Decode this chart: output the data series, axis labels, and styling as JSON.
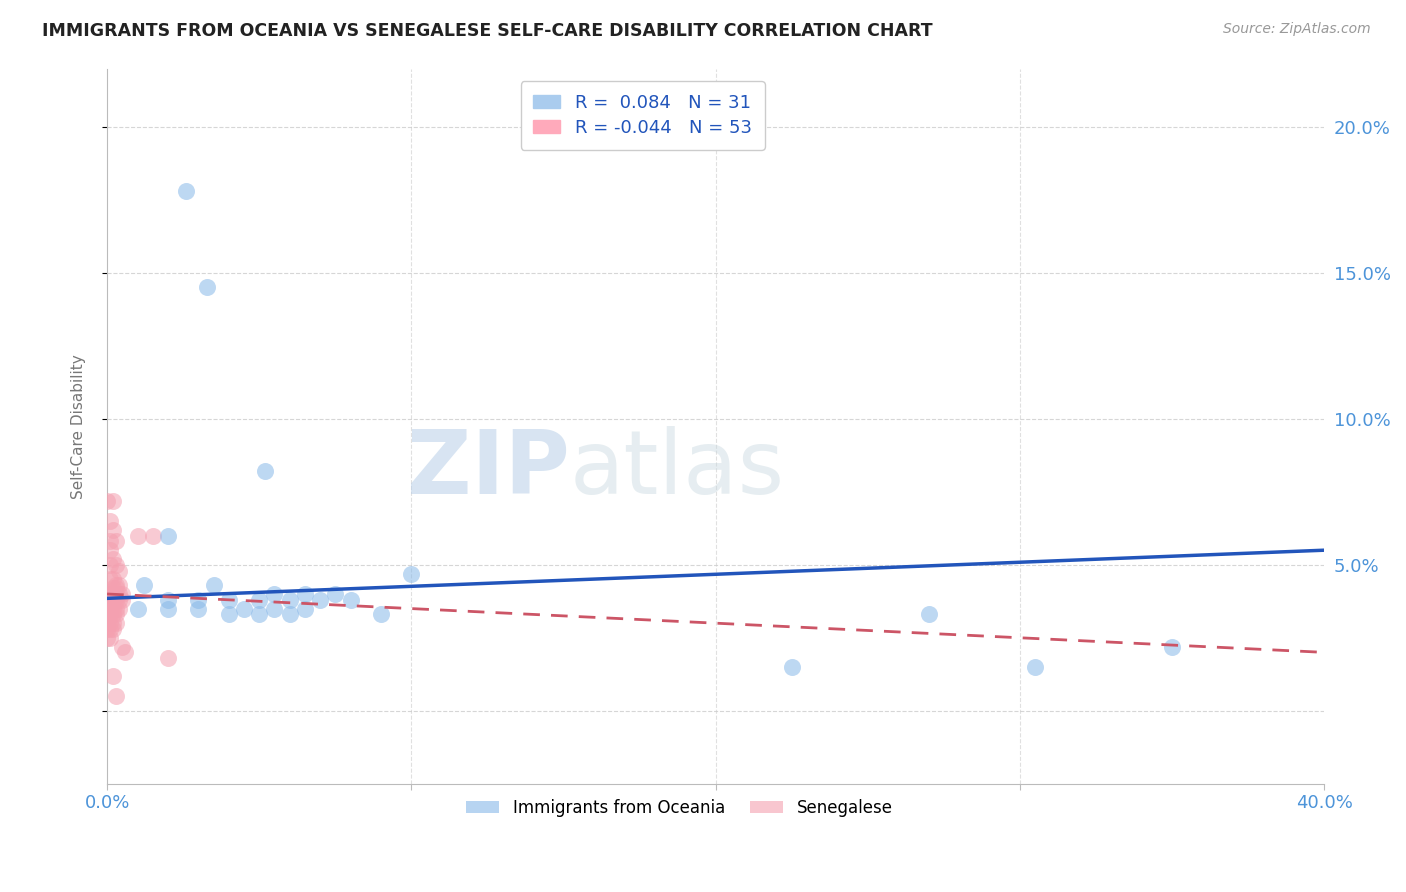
{
  "title": "IMMIGRANTS FROM OCEANIA VS SENEGALESE SELF-CARE DISABILITY CORRELATION CHART",
  "source": "Source: ZipAtlas.com",
  "xlabel_color": "#4d94d9",
  "ylabel": "Self-Care Disability",
  "xlim": [
    0.0,
    0.4
  ],
  "ylim": [
    -0.025,
    0.22
  ],
  "ytick_positions": [
    0.0,
    0.05,
    0.1,
    0.15,
    0.2
  ],
  "ytick_labels": [
    "",
    "5.0%",
    "10.0%",
    "15.0%",
    "20.0%"
  ],
  "xtick_positions": [
    0.0,
    0.1,
    0.2,
    0.3,
    0.4
  ],
  "xtick_labels": [
    "0.0%",
    "",
    "",
    "",
    "40.0%"
  ],
  "blue_color": "#88b8e8",
  "pink_color": "#f4a0b0",
  "trend_blue_color": "#2255bb",
  "trend_pink_color": "#cc5566",
  "watermark_zip": "ZIP",
  "watermark_atlas": "atlas",
  "blue_scatter": [
    [
      0.026,
      0.178
    ],
    [
      0.033,
      0.145
    ],
    [
      0.052,
      0.082
    ],
    [
      0.02,
      0.06
    ],
    [
      0.012,
      0.043
    ],
    [
      0.035,
      0.043
    ],
    [
      0.055,
      0.04
    ],
    [
      0.065,
      0.04
    ],
    [
      0.075,
      0.04
    ],
    [
      0.02,
      0.038
    ],
    [
      0.03,
      0.038
    ],
    [
      0.04,
      0.038
    ],
    [
      0.05,
      0.038
    ],
    [
      0.06,
      0.038
    ],
    [
      0.07,
      0.038
    ],
    [
      0.08,
      0.038
    ],
    [
      0.045,
      0.035
    ],
    [
      0.055,
      0.035
    ],
    [
      0.065,
      0.035
    ],
    [
      0.01,
      0.035
    ],
    [
      0.02,
      0.035
    ],
    [
      0.03,
      0.035
    ],
    [
      0.04,
      0.033
    ],
    [
      0.05,
      0.033
    ],
    [
      0.06,
      0.033
    ],
    [
      0.09,
      0.033
    ],
    [
      0.1,
      0.047
    ],
    [
      0.27,
      0.033
    ],
    [
      0.35,
      0.022
    ],
    [
      0.225,
      0.015
    ],
    [
      0.305,
      0.015
    ]
  ],
  "pink_scatter": [
    [
      0.0,
      0.072
    ],
    [
      0.002,
      0.072
    ],
    [
      0.001,
      0.065
    ],
    [
      0.002,
      0.062
    ],
    [
      0.001,
      0.058
    ],
    [
      0.003,
      0.058
    ],
    [
      0.001,
      0.055
    ],
    [
      0.002,
      0.052
    ],
    [
      0.001,
      0.05
    ],
    [
      0.003,
      0.05
    ],
    [
      0.004,
      0.048
    ],
    [
      0.001,
      0.045
    ],
    [
      0.002,
      0.045
    ],
    [
      0.003,
      0.043
    ],
    [
      0.004,
      0.043
    ],
    [
      0.002,
      0.042
    ],
    [
      0.003,
      0.042
    ],
    [
      0.0,
      0.04
    ],
    [
      0.001,
      0.04
    ],
    [
      0.002,
      0.04
    ],
    [
      0.003,
      0.04
    ],
    [
      0.004,
      0.04
    ],
    [
      0.005,
      0.04
    ],
    [
      0.001,
      0.038
    ],
    [
      0.002,
      0.038
    ],
    [
      0.003,
      0.038
    ],
    [
      0.004,
      0.038
    ],
    [
      0.005,
      0.038
    ],
    [
      0.0,
      0.035
    ],
    [
      0.001,
      0.035
    ],
    [
      0.002,
      0.035
    ],
    [
      0.003,
      0.035
    ],
    [
      0.004,
      0.035
    ],
    [
      0.0,
      0.033
    ],
    [
      0.001,
      0.033
    ],
    [
      0.002,
      0.033
    ],
    [
      0.003,
      0.033
    ],
    [
      0.0,
      0.03
    ],
    [
      0.001,
      0.03
    ],
    [
      0.002,
      0.03
    ],
    [
      0.003,
      0.03
    ],
    [
      0.0,
      0.028
    ],
    [
      0.001,
      0.028
    ],
    [
      0.002,
      0.028
    ],
    [
      0.0,
      0.025
    ],
    [
      0.001,
      0.025
    ],
    [
      0.01,
      0.06
    ],
    [
      0.015,
      0.06
    ],
    [
      0.005,
      0.022
    ],
    [
      0.002,
      0.012
    ],
    [
      0.003,
      0.005
    ],
    [
      0.02,
      0.018
    ],
    [
      0.006,
      0.02
    ]
  ],
  "blue_trend_x": [
    0.0,
    0.4
  ],
  "blue_trend_y": [
    0.0385,
    0.055
  ],
  "pink_trend_x": [
    0.0,
    0.4
  ],
  "pink_trend_y": [
    0.04,
    0.02
  ]
}
